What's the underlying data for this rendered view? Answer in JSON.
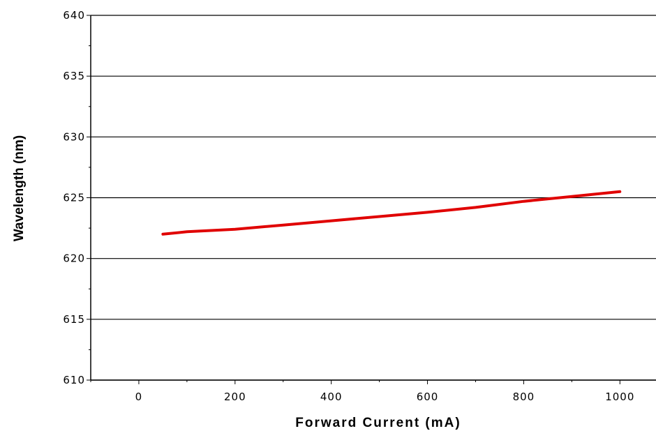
{
  "chart_data": {
    "type": "line",
    "xlabel": "Forward Current (mA)",
    "ylabel": "Wavelength (nm)",
    "xlim": [
      -100,
      1075
    ],
    "ylim": [
      610,
      640
    ],
    "x_ticks": [
      "0",
      "200",
      "400",
      "600",
      "800",
      "1000"
    ],
    "y_ticks": [
      "610",
      "615",
      "620",
      "625",
      "630",
      "635",
      "640"
    ],
    "grid": "horizontal",
    "series": [
      {
        "color": "#e00000",
        "x": [
          50,
          100,
          200,
          300,
          400,
          500,
          600,
          700,
          800,
          900,
          1000
        ],
        "y": [
          622.0,
          622.2,
          622.4,
          622.75,
          623.1,
          623.45,
          623.8,
          624.2,
          624.7,
          625.1,
          625.5
        ]
      }
    ]
  }
}
